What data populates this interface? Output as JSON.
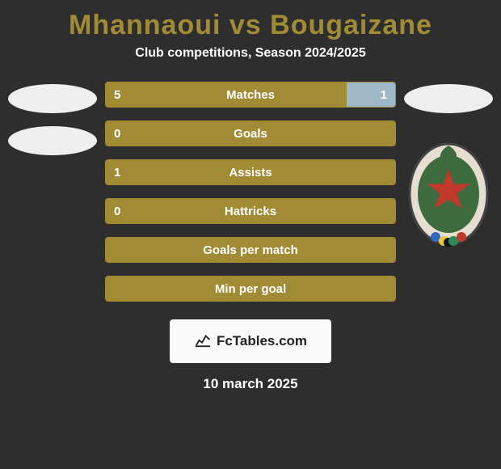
{
  "title_color": "#a18c35",
  "title": "Mhannaoui vs Bougaizane",
  "subtitle": "Club competitions, Season 2024/2025",
  "date": "10 march 2025",
  "attrib_label": "FcTables.com",
  "bar_border": "#a18c35",
  "bars": [
    {
      "label": "Matches",
      "left": "5",
      "right": "1",
      "left_val": 5,
      "right_val": 1,
      "left_color": "#a18c35",
      "right_color": "#9fb8c8"
    },
    {
      "label": "Goals",
      "left": "0",
      "right": "",
      "left_val": 0,
      "right_val": 0,
      "left_color": "#a18c35",
      "right_color": "#9fb8c8"
    },
    {
      "label": "Assists",
      "left": "1",
      "right": "",
      "left_val": 1,
      "right_val": 0,
      "left_color": "#a18c35",
      "right_color": "#9fb8c8"
    },
    {
      "label": "Hattricks",
      "left": "0",
      "right": "",
      "left_val": 0,
      "right_val": 0,
      "left_color": "#a18c35",
      "right_color": "#9fb8c8"
    },
    {
      "label": "Goals per match",
      "left": "",
      "right": "",
      "left_val": 1,
      "right_val": 0,
      "left_color": "#a18c35",
      "right_color": "#9fb8c8"
    },
    {
      "label": "Min per goal",
      "left": "",
      "right": "",
      "left_val": 1,
      "right_val": 0,
      "left_color": "#a18c35",
      "right_color": "#9fb8c8"
    }
  ]
}
